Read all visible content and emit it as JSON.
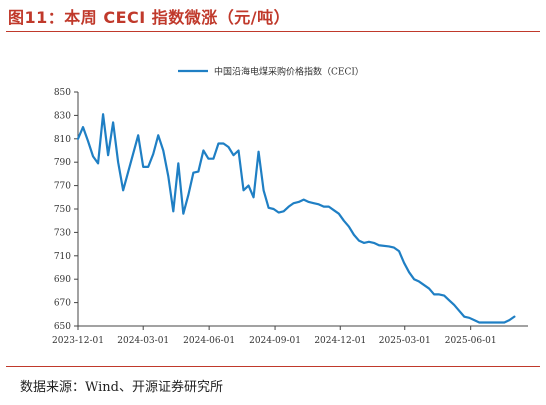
{
  "figure": {
    "title": "图11：本周 CECI 指数微涨（元/吨）",
    "source": "数据来源：Wind、开源证券研究所"
  },
  "colors": {
    "accent": "#c0392b",
    "series": "#1f7fc4",
    "axis": "#444444"
  },
  "chart_data": {
    "type": "line",
    "title": "",
    "xlabel": "",
    "ylabel": "",
    "ylim": [
      650,
      850
    ],
    "yticks": [
      650,
      670,
      690,
      710,
      730,
      750,
      770,
      790,
      810,
      830,
      850
    ],
    "xlim": [
      "2023-12-01",
      "2025-08-20"
    ],
    "xticks": [
      "2023-12-01",
      "2024-03-01",
      "2024-06-01",
      "2024-09-01",
      "2024-12-01",
      "2025-03-01",
      "2025-06-01"
    ],
    "grid": false,
    "legend": "top-center",
    "series": [
      {
        "name": "中国沿海电煤采购价格指数（CECI）",
        "points": [
          [
            "2023-12-01",
            810
          ],
          [
            "2023-12-08",
            820
          ],
          [
            "2023-12-15",
            808
          ],
          [
            "2023-12-22",
            795
          ],
          [
            "2023-12-29",
            789
          ],
          [
            "2024-01-05",
            831
          ],
          [
            "2024-01-12",
            796
          ],
          [
            "2024-01-19",
            824
          ],
          [
            "2024-01-26",
            790
          ],
          [
            "2024-02-02",
            766
          ],
          [
            "2024-02-23",
            813
          ],
          [
            "2024-03-01",
            786
          ],
          [
            "2024-03-08",
            786
          ],
          [
            "2024-03-15",
            797
          ],
          [
            "2024-03-22",
            813
          ],
          [
            "2024-03-29",
            800
          ],
          [
            "2024-04-05",
            778
          ],
          [
            "2024-04-12",
            748
          ],
          [
            "2024-04-19",
            789
          ],
          [
            "2024-04-26",
            746
          ],
          [
            "2024-05-03",
            762
          ],
          [
            "2024-05-10",
            781
          ],
          [
            "2024-05-17",
            782
          ],
          [
            "2024-05-24",
            800
          ],
          [
            "2024-05-31",
            793
          ],
          [
            "2024-06-07",
            793
          ],
          [
            "2024-06-14",
            806
          ],
          [
            "2024-06-21",
            806
          ],
          [
            "2024-06-28",
            803
          ],
          [
            "2024-07-05",
            796
          ],
          [
            "2024-07-12",
            800
          ],
          [
            "2024-07-19",
            766
          ],
          [
            "2024-07-26",
            770
          ],
          [
            "2024-08-02",
            760
          ],
          [
            "2024-08-09",
            799
          ],
          [
            "2024-08-16",
            766
          ],
          [
            "2024-08-23",
            751
          ],
          [
            "2024-08-30",
            750
          ],
          [
            "2024-09-06",
            747
          ],
          [
            "2024-09-13",
            748
          ],
          [
            "2024-09-20",
            752
          ],
          [
            "2024-09-27",
            755
          ],
          [
            "2024-10-04",
            756
          ],
          [
            "2024-10-11",
            758
          ],
          [
            "2024-10-18",
            756
          ],
          [
            "2024-10-25",
            755
          ],
          [
            "2024-11-01",
            754
          ],
          [
            "2024-11-08",
            752
          ],
          [
            "2024-11-15",
            752
          ],
          [
            "2024-11-22",
            749
          ],
          [
            "2024-11-29",
            746
          ],
          [
            "2024-12-06",
            740
          ],
          [
            "2024-12-13",
            735
          ],
          [
            "2024-12-20",
            728
          ],
          [
            "2024-12-27",
            723
          ],
          [
            "2025-01-03",
            721
          ],
          [
            "2025-01-10",
            722
          ],
          [
            "2025-01-17",
            721
          ],
          [
            "2025-01-24",
            719
          ],
          [
            "2025-02-07",
            718
          ],
          [
            "2025-02-14",
            717
          ],
          [
            "2025-02-21",
            714
          ],
          [
            "2025-02-28",
            704
          ],
          [
            "2025-03-07",
            696
          ],
          [
            "2025-03-14",
            690
          ],
          [
            "2025-03-21",
            688
          ],
          [
            "2025-03-28",
            685
          ],
          [
            "2025-04-04",
            682
          ],
          [
            "2025-04-11",
            677
          ],
          [
            "2025-04-18",
            677
          ],
          [
            "2025-04-25",
            676
          ],
          [
            "2025-05-02",
            672
          ],
          [
            "2025-05-09",
            668
          ],
          [
            "2025-05-16",
            663
          ],
          [
            "2025-05-23",
            658
          ],
          [
            "2025-05-30",
            657
          ],
          [
            "2025-06-06",
            655
          ],
          [
            "2025-06-13",
            653
          ],
          [
            "2025-06-20",
            653
          ],
          [
            "2025-06-27",
            653
          ],
          [
            "2025-07-04",
            653
          ],
          [
            "2025-07-11",
            653
          ],
          [
            "2025-07-18",
            653
          ],
          [
            "2025-07-25",
            655
          ],
          [
            "2025-08-01",
            658
          ]
        ]
      }
    ]
  }
}
